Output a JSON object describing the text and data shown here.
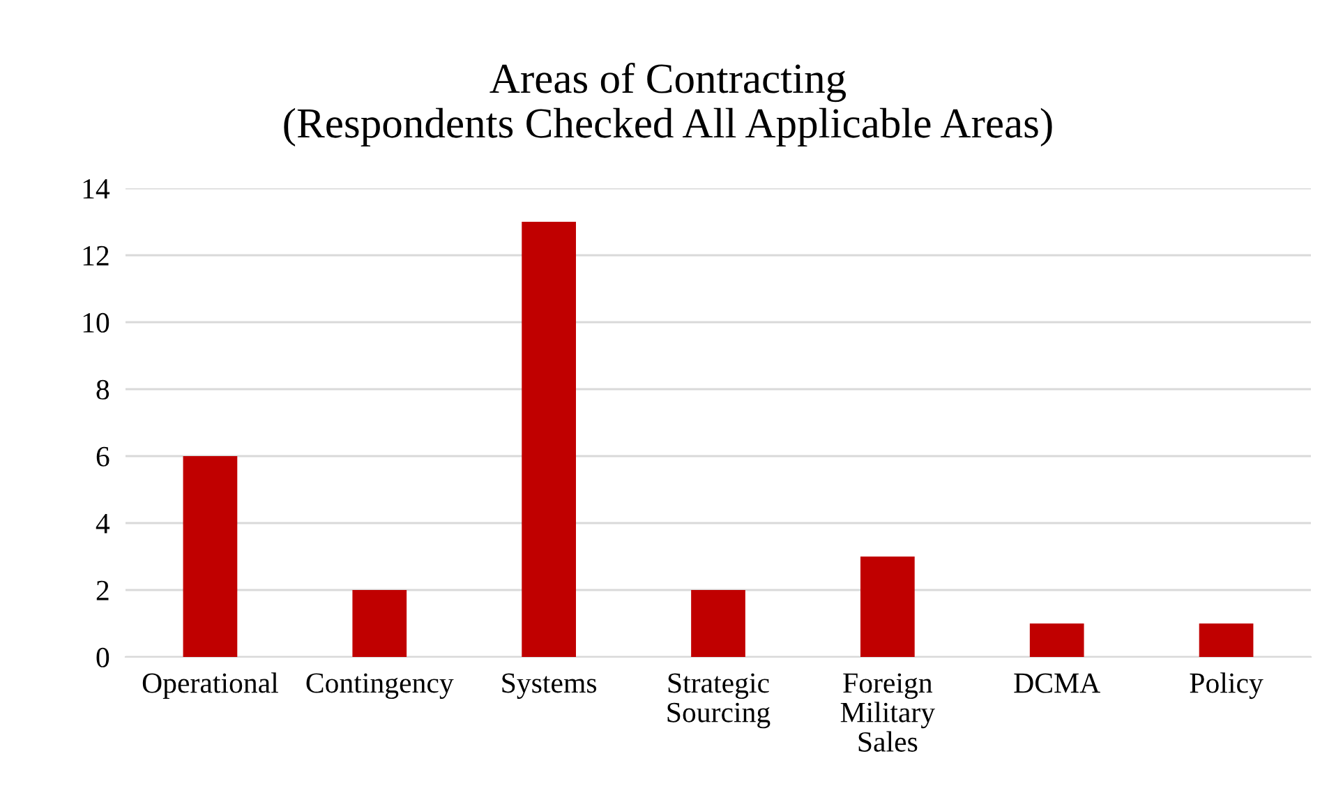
{
  "chart_data": {
    "type": "bar",
    "title": "Areas of Contracting\n(Respondents Checked All Applicable Areas)",
    "categories": [
      "Operational",
      "Contingency",
      "Systems",
      "Strategic\nSourcing",
      "Foreign\nMilitary\nSales",
      "DCMA",
      "Policy"
    ],
    "values": [
      6,
      2,
      13,
      2,
      3,
      1,
      1
    ],
    "color": "#c00000",
    "ylim": [
      0,
      14
    ],
    "yticks": [
      0,
      2,
      4,
      6,
      8,
      10,
      12,
      14
    ],
    "grid": "y"
  }
}
